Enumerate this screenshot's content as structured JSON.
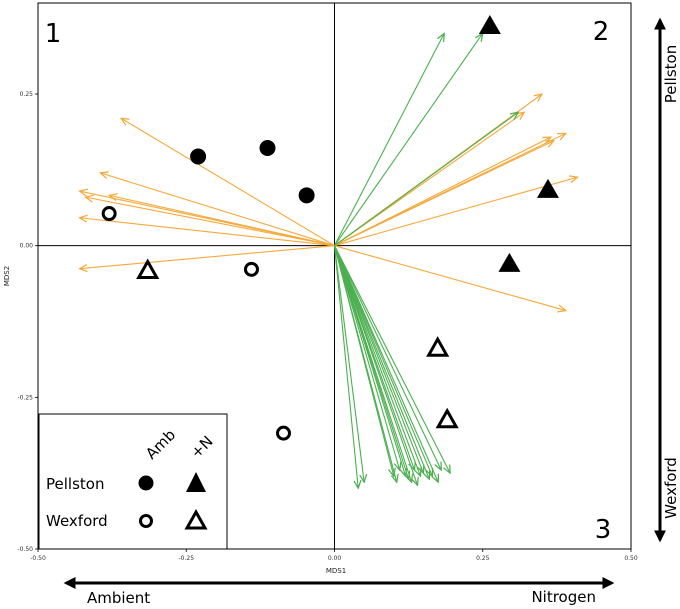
{
  "chart_data": {
    "type": "scatter",
    "xlabel": "MDS1",
    "ylabel": "MDS2",
    "xlim": [
      -0.5,
      0.5
    ],
    "ylim": [
      -0.5,
      0.4
    ],
    "x_ticks": [
      "-0.50",
      "-0.25",
      "0.00",
      "0.25",
      "0.50"
    ],
    "y_ticks": [
      "0.25",
      "0.00",
      "-0.25",
      "-0.50"
    ],
    "x_tick_values": [
      -0.5,
      -0.25,
      0.0,
      0.25,
      0.5
    ],
    "y_tick_values": [
      0.25,
      0.0,
      -0.25,
      -0.5
    ],
    "quadrant_labels": [
      "1",
      "2",
      "3"
    ],
    "gradient_labels": {
      "left": "Ambient",
      "right": "Nitrogen",
      "top": "Pellston",
      "bottom": "Wexford"
    },
    "legend": {
      "position": "bottom-left",
      "column_headers": [
        "Amb",
        "+N"
      ],
      "rows": [
        "Pellston",
        "Wexford"
      ]
    },
    "series": [
      {
        "name": "Pellston Amb",
        "marker": "filled-circle",
        "points": [
          [
            -0.23,
            0.147
          ],
          [
            -0.113,
            0.161
          ],
          [
            -0.047,
            0.083
          ]
        ]
      },
      {
        "name": "Pellston +N",
        "marker": "filled-triangle",
        "points": [
          [
            0.262,
            0.362
          ],
          [
            0.36,
            0.092
          ],
          [
            0.295,
            -0.03
          ]
        ]
      },
      {
        "name": "Wexford Amb",
        "marker": "open-circle",
        "points": [
          [
            -0.38,
            0.053
          ],
          [
            -0.14,
            -0.039
          ],
          [
            -0.086,
            -0.309
          ]
        ]
      },
      {
        "name": "Wexford +N",
        "marker": "open-triangle",
        "points": [
          [
            -0.315,
            -0.041
          ],
          [
            0.174,
            -0.169
          ],
          [
            0.19,
            -0.287
          ]
        ]
      }
    ],
    "vectors": [
      {
        "group": "orange",
        "color": "#f5a93a",
        "tips": [
          [
            -0.36,
            0.21
          ],
          [
            -0.395,
            0.12
          ],
          [
            -0.43,
            0.09
          ],
          [
            -0.42,
            0.08
          ],
          [
            -0.38,
            0.083
          ],
          [
            -0.43,
            0.046
          ],
          [
            -0.43,
            -0.038
          ],
          [
            0.35,
            0.25
          ],
          [
            0.32,
            0.22
          ],
          [
            0.365,
            0.179
          ],
          [
            0.39,
            0.185
          ],
          [
            0.37,
            0.173
          ],
          [
            0.41,
            0.113
          ],
          [
            0.39,
            -0.107
          ]
        ]
      },
      {
        "group": "green",
        "color": "#4caf50",
        "tips": [
          [
            0.185,
            0.35
          ],
          [
            0.25,
            0.35
          ],
          [
            0.31,
            0.22
          ],
          [
            0.04,
            -0.4
          ],
          [
            0.05,
            -0.39
          ],
          [
            0.1,
            -0.38
          ],
          [
            0.105,
            -0.39
          ],
          [
            0.11,
            -0.37
          ],
          [
            0.12,
            -0.38
          ],
          [
            0.125,
            -0.385
          ],
          [
            0.13,
            -0.39
          ],
          [
            0.135,
            -0.37
          ],
          [
            0.14,
            -0.395
          ],
          [
            0.145,
            -0.38
          ],
          [
            0.15,
            -0.375
          ],
          [
            0.16,
            -0.385
          ],
          [
            0.165,
            -0.38
          ],
          [
            0.175,
            -0.39
          ],
          [
            0.18,
            -0.37
          ],
          [
            0.195,
            -0.375
          ]
        ]
      }
    ]
  }
}
